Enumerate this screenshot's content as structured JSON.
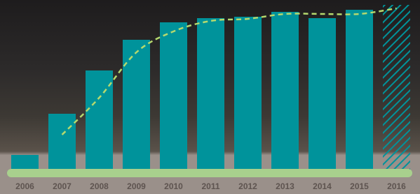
{
  "chart_data": {
    "type": "bar",
    "categories": [
      "2006",
      "2007",
      "2008",
      "2009",
      "2010",
      "2011",
      "2012",
      "2013",
      "2014",
      "2015",
      "2016"
    ],
    "values": [
      21,
      80,
      142,
      186,
      211,
      217,
      219,
      226,
      217,
      229,
      236
    ],
    "color": "#00939b",
    "hatched": [
      false,
      false,
      false,
      false,
      false,
      false,
      false,
      false,
      false,
      false,
      true
    ],
    "line_values": [
      null,
      50,
      103,
      168,
      198,
      213,
      216,
      223,
      223,
      223,
      231
    ],
    "line_color": "#b5d96e",
    "ylim": [
      0,
      240
    ]
  }
}
